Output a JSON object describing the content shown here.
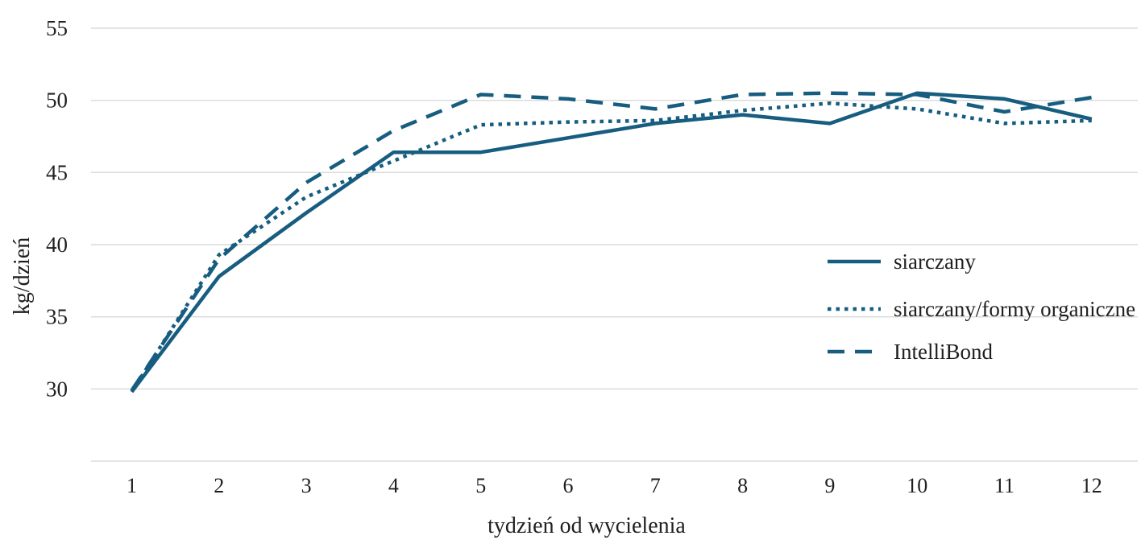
{
  "chart_data": {
    "type": "line",
    "title": "",
    "xlabel": "tydzień od wycielenia",
    "ylabel": "kg/dzień",
    "x": [
      1,
      2,
      3,
      4,
      5,
      6,
      7,
      8,
      9,
      10,
      11,
      12
    ],
    "yticks": [
      30,
      35,
      40,
      45,
      50,
      55
    ],
    "gridline_values": [
      25,
      30,
      35,
      40,
      45,
      50,
      55
    ],
    "ylim": [
      25,
      55
    ],
    "grid": true,
    "legend_position": "middle-right",
    "accent_color": "#175d80",
    "gridline_color": "#dcdcdc",
    "text_color": "#1f1f1f",
    "series": [
      {
        "name": "siarczany",
        "style": "solid",
        "values": [
          29.8,
          37.8,
          42.2,
          46.4,
          46.4,
          47.4,
          48.4,
          49.0,
          48.4,
          50.5,
          50.1,
          48.7
        ]
      },
      {
        "name": "siarczany/formy organiczne",
        "style": "dotted",
        "values": [
          29.8,
          39.3,
          43.3,
          45.8,
          48.3,
          48.5,
          48.6,
          49.3,
          49.8,
          49.4,
          48.4,
          48.6
        ]
      },
      {
        "name": "IntelliBond",
        "style": "dashed",
        "values": [
          29.9,
          39.0,
          44.3,
          47.9,
          50.4,
          50.1,
          49.4,
          50.4,
          50.5,
          50.4,
          49.2,
          50.2
        ]
      }
    ]
  }
}
